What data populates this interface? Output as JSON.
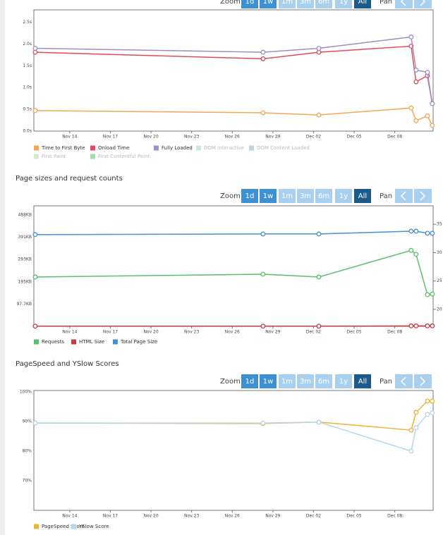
{
  "controls": {
    "zoom_label": "Zoom",
    "buttons": [
      "1d",
      "1w",
      "1m",
      "3m",
      "6m",
      "1y",
      "All"
    ],
    "enabled": [
      "1d",
      "1w",
      "All"
    ],
    "selected": "All",
    "pan_label": "Pan"
  },
  "chart_data": [
    {
      "type": "line",
      "x": [
        11.45,
        28.27,
        32.39,
        39.21,
        39.57,
        40.41,
        40.77
      ],
      "xlim": [
        11.35,
        40.83
      ],
      "xticks": [
        {
          "value": 14,
          "label": "Nov 14"
        },
        {
          "value": 17,
          "label": "Nov 17"
        },
        {
          "value": 20,
          "label": "Nov 20"
        },
        {
          "value": 23,
          "label": "Nov 23"
        },
        {
          "value": 26,
          "label": "Nov 26"
        },
        {
          "value": 29,
          "label": "Nov 29"
        },
        {
          "value": 32,
          "label": "Dec 02"
        },
        {
          "value": 35,
          "label": "Dec 05"
        },
        {
          "value": 38,
          "label": "Dec 08"
        }
      ],
      "ylim": [
        0,
        2.75
      ],
      "yticks": [
        {
          "value": 0,
          "label": "0.0s"
        },
        {
          "value": 0.5,
          "label": "0.5s"
        },
        {
          "value": 1,
          "label": "1.0s"
        },
        {
          "value": 1.5,
          "label": "1.5s"
        },
        {
          "value": 2,
          "label": "2.0s"
        },
        {
          "value": 2.5,
          "label": "2.5s"
        }
      ],
      "series": [
        {
          "name": "Time to First Byte",
          "color": "#f2a854",
          "visible": true,
          "values": [
            0.47,
            0.42,
            0.37,
            0.53,
            0.24,
            0.35,
            0.13
          ]
        },
        {
          "name": "Onload Time",
          "color": "#e24b5b",
          "visible": true,
          "values": [
            1.81,
            1.66,
            1.81,
            1.95,
            1.13,
            1.27,
            0.63
          ]
        },
        {
          "name": "Fully Loaded",
          "color": "#9b8fc6",
          "visible": true,
          "values": [
            1.9,
            1.81,
            1.9,
            2.16,
            1.4,
            1.35,
            0.63
          ]
        },
        {
          "name": "DOM Interactive",
          "color": "#c6e9e9",
          "visible": false,
          "values": [
            null,
            null,
            null,
            null,
            null,
            null,
            null
          ]
        },
        {
          "name": "DOM Content Loaded",
          "color": "#b7d5ec",
          "visible": false,
          "values": [
            null,
            null,
            null,
            null,
            null,
            null,
            null
          ]
        },
        {
          "name": "First Paint",
          "color": "#d3ebcf",
          "visible": false,
          "values": [
            null,
            null,
            null,
            null,
            null,
            null,
            null
          ]
        },
        {
          "name": "First Contentful Paint",
          "color": "#a4dbaa",
          "visible": false,
          "values": [
            null,
            null,
            null,
            null,
            null,
            null,
            null
          ]
        }
      ]
    },
    {
      "type": "line",
      "title": "Page sizes and request counts",
      "x": [
        11.45,
        28.27,
        32.39,
        39.21,
        39.57,
        40.41,
        40.77
      ],
      "xlim": [
        11.35,
        40.83
      ],
      "xticks": [
        {
          "value": 14,
          "label": "Nov 14"
        },
        {
          "value": 17,
          "label": "Nov 17"
        },
        {
          "value": 20,
          "label": "Nov 20"
        },
        {
          "value": 23,
          "label": "Nov 23"
        },
        {
          "value": 26,
          "label": "Nov 26"
        },
        {
          "value": 29,
          "label": "Nov 29"
        },
        {
          "value": 32,
          "label": "Dec 02"
        },
        {
          "value": 35,
          "label": "Dec 05"
        },
        {
          "value": 38,
          "label": "Dec 08"
        }
      ],
      "ylim": [
        0,
        522
      ],
      "yticks": [
        {
          "value": 97.7,
          "label": "97.7KB"
        },
        {
          "value": 195,
          "label": "195KB"
        },
        {
          "value": 293,
          "label": "293KB"
        },
        {
          "value": 391,
          "label": "391KB"
        },
        {
          "value": 488,
          "label": "488KB"
        }
      ],
      "y2lim": [
        17,
        38
      ],
      "y2ticks": [
        20,
        25,
        30,
        35
      ],
      "series": [
        {
          "name": "Requests",
          "color": "#5cbf6b",
          "visible": true,
          "axis": "y2",
          "values": [
            25.7,
            26.2,
            25.7,
            30.4,
            29.7,
            22.6,
            22.7
          ]
        },
        {
          "name": "HTML Size",
          "color": "#c63b3e",
          "visible": true,
          "values": [
            1,
            1,
            1,
            2,
            2,
            2,
            2
          ]
        },
        {
          "name": "Total Page Size",
          "color": "#4a8fd6",
          "visible": true,
          "values": [
            402,
            405,
            405,
            417,
            417,
            408,
            408
          ]
        }
      ]
    },
    {
      "type": "line",
      "title": "PageSpeed and YSlow Scores",
      "x": [
        11.45,
        28.27,
        32.39,
        39.21,
        39.57,
        40.41,
        40.77
      ],
      "xlim": [
        11.35,
        40.83
      ],
      "xticks": [
        {
          "value": 14,
          "label": "Nov 14"
        },
        {
          "value": 17,
          "label": "Nov 17"
        },
        {
          "value": 20,
          "label": "Nov 20"
        },
        {
          "value": 23,
          "label": "Nov 23"
        },
        {
          "value": 26,
          "label": "Nov 26"
        },
        {
          "value": 29,
          "label": "Nov 29"
        },
        {
          "value": 32,
          "label": "Dec 02"
        },
        {
          "value": 35,
          "label": "Dec 05"
        },
        {
          "value": 38,
          "label": "Dec 08"
        }
      ],
      "ylim": [
        60,
        100
      ],
      "yticks": [
        {
          "value": 70,
          "label": "70%"
        },
        {
          "value": 80,
          "label": "80%"
        },
        {
          "value": 90,
          "label": "90%"
        },
        {
          "value": 100,
          "label": "100%"
        }
      ],
      "series": [
        {
          "name": "PageSpeed Score",
          "color": "#e8b634",
          "visible": true,
          "values": [
            89.5,
            89.3,
            89.8,
            87.1,
            93.1,
            96.9,
            96.9
          ]
        },
        {
          "name": "YSlow Score",
          "color": "#b7d5ec",
          "visible": true,
          "values": [
            89.5,
            89.5,
            89.8,
            80,
            87.9,
            92.4,
            92.9
          ]
        }
      ]
    }
  ]
}
